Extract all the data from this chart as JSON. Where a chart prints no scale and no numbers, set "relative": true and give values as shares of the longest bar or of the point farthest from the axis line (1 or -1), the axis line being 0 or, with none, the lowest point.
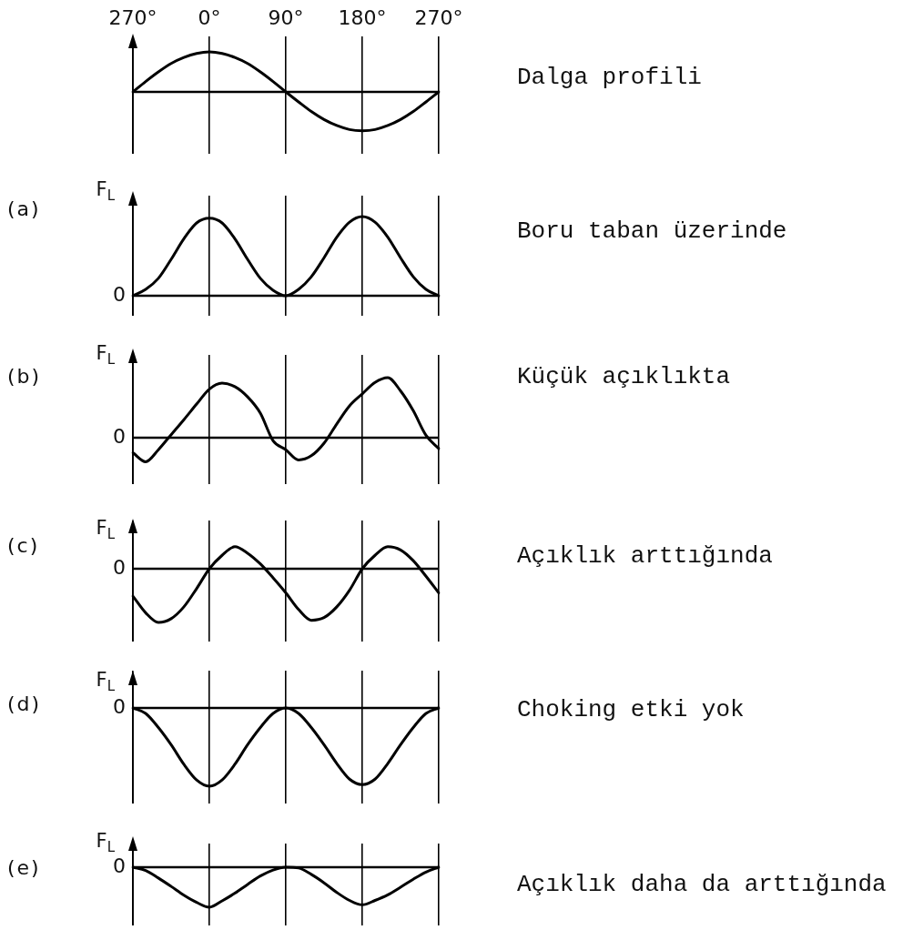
{
  "chart_data": [
    {
      "type": "line",
      "annotations": [
        "Dalga profili"
      ],
      "relative": true,
      "categories": [
        "270°",
        null,
        null,
        null,
        null,
        null,
        "0°",
        null,
        null,
        null,
        null,
        null,
        "90°",
        null,
        null,
        null,
        null,
        null,
        "180°",
        null,
        null,
        null,
        null,
        null,
        "270°"
      ],
      "grid": "x",
      "marker": "none",
      "line_style": "solid",
      "ref_lines": [
        {
          "axis": "y",
          "value": 0
        }
      ],
      "series": [
        {
          "color": "#000000",
          "values": [
            0,
            0.26,
            0.5,
            0.71,
            0.86,
            0.96,
            1,
            0.96,
            0.86,
            0.71,
            0.5,
            0.26,
            0,
            -0.25,
            -0.49,
            -0.69,
            -0.84,
            -0.94,
            -0.97,
            -0.94,
            -0.84,
            -0.69,
            -0.49,
            -0.25,
            0
          ]
        }
      ]
    },
    {
      "type": "line",
      "ylabel": "F$_{L}$",
      "annotations": [
        "(a)",
        "Boru taban üzerinde"
      ],
      "relative": true,
      "categories": [
        null,
        null,
        null,
        null,
        null,
        null,
        null,
        null,
        null,
        null,
        null,
        null,
        null,
        null,
        null,
        null,
        null,
        null,
        null,
        null,
        null,
        null,
        null,
        null,
        null
      ],
      "grid": "x",
      "marker": "none",
      "line_style": "solid",
      "ref_lines": [
        {
          "axis": "y",
          "value": 0,
          "label": "0"
        }
      ],
      "series": [
        {
          "color": "#000000",
          "values": [
            0,
            0.08,
            0.22,
            0.46,
            0.72,
            0.92,
            0.98,
            0.92,
            0.72,
            0.46,
            0.22,
            0.07,
            0,
            0.08,
            0.24,
            0.48,
            0.74,
            0.93,
            1,
            0.93,
            0.74,
            0.48,
            0.24,
            0.08,
            0
          ]
        }
      ]
    },
    {
      "type": "line",
      "ylabel": "F$_{L}$",
      "annotations": [
        "(b)",
        "Küçük açıklıkta"
      ],
      "relative": true,
      "categories": [
        null,
        null,
        null,
        null,
        null,
        null,
        null,
        null,
        null,
        null,
        null,
        null,
        null,
        null,
        null,
        null,
        null,
        null,
        null,
        null,
        null,
        null,
        null,
        null,
        null
      ],
      "grid": "x",
      "marker": "none",
      "line_style": "solid",
      "ref_lines": [
        {
          "axis": "y",
          "value": 0,
          "label": "0"
        }
      ],
      "series": [
        {
          "color": "#000000",
          "values": [
            -0.25,
            -0.4,
            -0.2,
            0.05,
            0.3,
            0.56,
            0.81,
            0.91,
            0.85,
            0.68,
            0.41,
            -0.05,
            -0.2,
            -0.37,
            -0.3,
            -0.09,
            0.23,
            0.53,
            0.73,
            0.92,
            1,
            0.78,
            0.45,
            0.04,
            -0.18
          ]
        }
      ]
    },
    {
      "type": "line",
      "ylabel": "F$_{L}$",
      "annotations": [
        "(c)",
        "Açıklık arttığında"
      ],
      "relative": true,
      "categories": [
        null,
        null,
        null,
        null,
        null,
        null,
        null,
        null,
        null,
        null,
        null,
        null,
        null,
        null,
        null,
        null,
        null,
        null,
        null,
        null,
        null,
        null,
        null,
        null,
        null
      ],
      "grid": "x",
      "marker": "none",
      "line_style": "solid",
      "ref_lines": [
        {
          "axis": "y",
          "value": 0,
          "label": "0"
        }
      ],
      "series": [
        {
          "color": "#000000",
          "values": [
            -0.51,
            -0.82,
            -1,
            -0.93,
            -0.71,
            -0.37,
            0,
            0.25,
            0.41,
            0.29,
            0.09,
            -0.17,
            -0.45,
            -0.76,
            -0.96,
            -0.91,
            -0.71,
            -0.4,
            0,
            0.25,
            0.41,
            0.35,
            0.15,
            -0.14,
            -0.45
          ]
        }
      ]
    },
    {
      "type": "line",
      "ylabel": "F$_{L}$",
      "annotations": [
        "(d)",
        "Choking etki yok"
      ],
      "relative": true,
      "categories": [
        null,
        null,
        null,
        null,
        null,
        null,
        null,
        null,
        null,
        null,
        null,
        null,
        null,
        null,
        null,
        null,
        null,
        null,
        null,
        null,
        null,
        null,
        null,
        null,
        null
      ],
      "grid": "x",
      "marker": "none",
      "line_style": "solid",
      "ref_lines": [
        {
          "axis": "y",
          "value": 0,
          "label": "0"
        }
      ],
      "series": [
        {
          "color": "#000000",
          "values": [
            0,
            -0.07,
            -0.25,
            -0.47,
            -0.72,
            -0.92,
            -1,
            -0.92,
            -0.72,
            -0.47,
            -0.25,
            -0.07,
            0,
            -0.07,
            -0.25,
            -0.47,
            -0.71,
            -0.91,
            -0.98,
            -0.91,
            -0.71,
            -0.47,
            -0.25,
            -0.07,
            0
          ]
        }
      ]
    },
    {
      "type": "line",
      "ylabel": "F$_{L}$",
      "annotations": [
        "(e)",
        "Açıklık daha da arttığında"
      ],
      "relative": true,
      "categories": [
        null,
        null,
        null,
        null,
        null,
        null,
        null,
        null,
        null,
        null,
        null,
        null,
        null,
        null,
        null,
        null,
        null,
        null,
        null,
        null,
        null,
        null,
        null,
        null,
        null
      ],
      "grid": "x",
      "marker": "none",
      "line_style": "solid",
      "ref_lines": [
        {
          "axis": "y",
          "value": 0,
          "label": "0"
        }
      ],
      "series": [
        {
          "color": "#000000",
          "values": [
            0,
            -0.08,
            -0.27,
            -0.48,
            -0.7,
            -0.88,
            -1,
            -0.84,
            -0.65,
            -0.43,
            -0.22,
            -0.07,
            0,
            -0.02,
            -0.18,
            -0.39,
            -0.63,
            -0.83,
            -0.94,
            -0.83,
            -0.69,
            -0.5,
            -0.3,
            -0.12,
            0
          ]
        }
      ]
    }
  ]
}
